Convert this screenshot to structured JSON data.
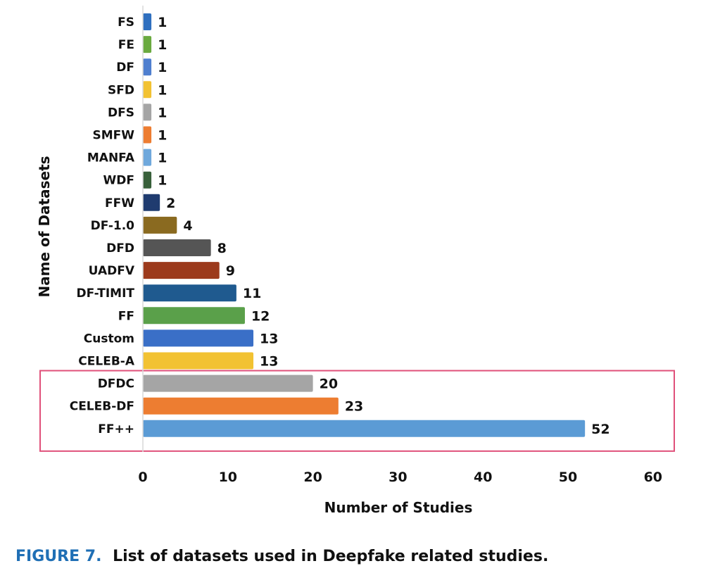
{
  "chart_data": {
    "type": "bar",
    "orientation": "horizontal",
    "xlabel": "Number of Studies",
    "ylabel": "Name of Datasets",
    "xlim": [
      0,
      60
    ],
    "xticks": [
      0,
      10,
      20,
      30,
      40,
      50,
      60
    ],
    "grid": false,
    "categories": [
      "FS",
      "FE",
      "DF",
      "SFD",
      "DFS",
      "SMFW",
      "MANFA",
      "WDF",
      "FFW",
      "DF-1.0",
      "DFD",
      "UADFV",
      "DF-TIMIT",
      "FF",
      "Custom",
      "CELEB-A",
      "DFDC",
      "CELEB-DF",
      "FF++"
    ],
    "values": [
      1,
      1,
      1,
      1,
      1,
      1,
      1,
      1,
      2,
      4,
      8,
      9,
      11,
      12,
      13,
      13,
      20,
      23,
      52
    ],
    "colors": [
      "#2f6fbf",
      "#6aaa3f",
      "#4f7fcf",
      "#f2c232",
      "#a5a5a5",
      "#ed7d31",
      "#6fa8dc",
      "#38603a",
      "#1f3b6f",
      "#8a6a20",
      "#555555",
      "#9c3a1c",
      "#1f5a8f",
      "#5aa04a",
      "#3a6fc7",
      "#f2c232",
      "#a5a5a5",
      "#ed7d31",
      "#5b9bd5"
    ],
    "highlighted": [
      "DFDC",
      "CELEB-DF",
      "FF++"
    ],
    "highlight_color": "#e0507a"
  },
  "caption": {
    "label": "FIGURE 7.",
    "text": "List of datasets used in Deepfake related studies."
  }
}
